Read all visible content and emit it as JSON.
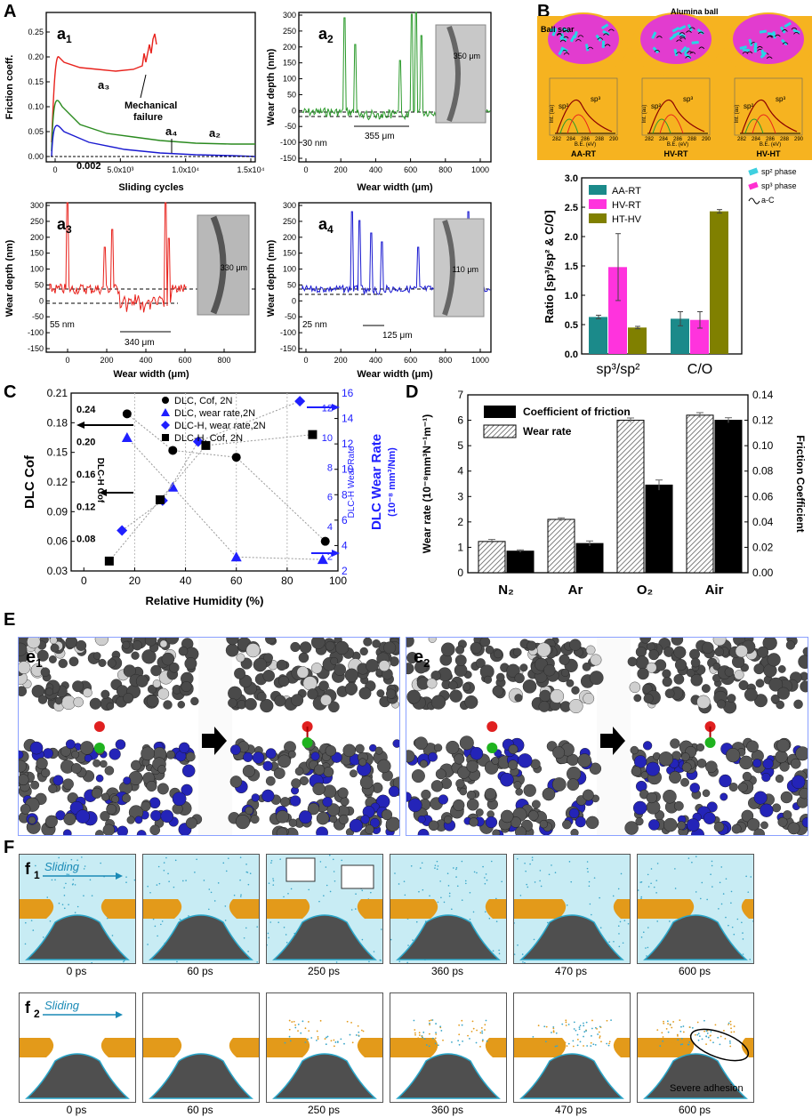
{
  "panels": {
    "A": {
      "letter": "A"
    },
    "B": {
      "letter": "B"
    },
    "C": {
      "letter": "C"
    },
    "D": {
      "letter": "D"
    },
    "E": {
      "letter": "E"
    },
    "F": {
      "letter": "F"
    }
  },
  "a1": {
    "label_main": "a",
    "label_sub": "1",
    "ylabel": "Friction coeff.",
    "xlabel": "Sliding cycles",
    "yticks": [
      "0.00",
      "0.05",
      "0.10",
      "0.15",
      "0.20",
      "0.25"
    ],
    "xticks": [
      "0",
      "5.0x10³",
      "1.0x10⁴",
      "1.5x10⁴"
    ],
    "ann_a3": "a₃",
    "ann_a4": "a₄",
    "ann_a2": "a₂",
    "ann_mech": "Mechanical",
    "ann_fail": "failure",
    "ann_min": "0.002"
  },
  "a2": {
    "label_main": "a",
    "label_sub": "2",
    "ylabel": "Wear depth (nm)",
    "xlabel": "Wear width (μm)",
    "yticks": [
      "-150",
      "-100",
      "-50",
      "0",
      "50",
      "100",
      "150",
      "200",
      "250",
      "300"
    ],
    "xticks": [
      "0",
      "200",
      "400",
      "600",
      "800",
      "1000"
    ],
    "ann_depth": "30 nm",
    "ann_width": "355 μm",
    "ann_img": "350 μm"
  },
  "a3": {
    "label_main": "a",
    "label_sub": "3",
    "ylabel": "Wear depth (nm)",
    "xlabel": "Wear width (μm)",
    "yticks": [
      "-150",
      "-100",
      "-50",
      "0",
      "50",
      "100",
      "150",
      "200",
      "250",
      "300"
    ],
    "xticks": [
      "0",
      "200",
      "400",
      "600",
      "800"
    ],
    "ann_depth": "55 nm",
    "ann_width": "340 μm",
    "ann_img": "330 μm"
  },
  "a4": {
    "label_main": "a",
    "label_sub": "4",
    "ylabel": "Wear depth (nm)",
    "xlabel": "Wear width (μm)",
    "yticks": [
      "-150",
      "-100",
      "-50",
      "0",
      "50",
      "100",
      "150",
      "200",
      "250",
      "300"
    ],
    "xticks": [
      "0",
      "200",
      "400",
      "600",
      "800",
      "1000"
    ],
    "ann_depth": "25 nm",
    "ann_width": "125 μm",
    "ann_img": "110 μm"
  },
  "b": {
    "alumina": "Alumina ball",
    "ballscar": "Ball scar",
    "insets": [
      {
        "caption": "AA-RT",
        "sp2": "sp²",
        "sp3": "sp³"
      },
      {
        "caption": "HV-RT",
        "sp2": "sp²",
        "sp3": "sp³"
      },
      {
        "caption": "HV-HT",
        "sp2": "sp²",
        "sp3": "sp³"
      }
    ],
    "inset_xlabel": "B.E. (eV)",
    "inset_ylabel": "Int. (au)",
    "inset_xticks": [
      "282",
      "284",
      "286",
      "288",
      "290"
    ],
    "legend_sp2": "sp² phase",
    "legend_sp3": "sp³ phase",
    "legend_ac": "a-C"
  },
  "chart_data": [
    {
      "id": "B-bar",
      "type": "bar",
      "ylabel": "Ratio [sp³/sp² & C/O]",
      "categories": [
        "sp³/sp²",
        "C/O"
      ],
      "yticks": [
        "0.0",
        "0.5",
        "1.0",
        "1.5",
        "2.0",
        "2.5",
        "3.0"
      ],
      "ylim": [
        0,
        3.0
      ],
      "series": [
        {
          "name": "AA-RT",
          "color": "#1b8a8a",
          "values": [
            0.63,
            0.6
          ],
          "errors": [
            0.03,
            0.12
          ]
        },
        {
          "name": "HV-RT",
          "color": "#ff33dd",
          "values": [
            1.48,
            0.58
          ],
          "errors": [
            0.57,
            0.14
          ]
        },
        {
          "name": "HT-HV",
          "color": "#808000",
          "values": [
            0.45,
            2.43
          ],
          "errors": [
            0.02,
            0.03
          ]
        }
      ]
    },
    {
      "id": "C-scatter",
      "type": "scatter",
      "xlabel": "Relative Humidity (%)",
      "ylabel_left": "DLC Cof",
      "ylabel_left_inner": "DLC-H Cof",
      "ylabel_right": "DLC Wear Rate",
      "ylabel_right_units": "(10⁻⁸ mm³/Nm)",
      "ylabel_right_inner": "DLC-H Wear Rate",
      "xticks": [
        "0",
        "20",
        "40",
        "60",
        "80",
        "100"
      ],
      "yticks_left": [
        "0.03",
        "0.06",
        "0.09",
        "0.12",
        "0.15",
        "0.18",
        "0.21"
      ],
      "yticks_left_inner": [
        "0.08",
        "0.12",
        "0.16",
        "0.20",
        "0.24"
      ],
      "yticks_right": [
        "2",
        "4",
        "6",
        "8",
        "10",
        "12",
        "14",
        "16"
      ],
      "yticks_right_inner": [
        "2",
        "4",
        "6",
        "8",
        "10",
        "12"
      ],
      "series": [
        {
          "name": "DLC, Cof, 2N",
          "marker": "circle",
          "color": "#000000",
          "x": [
            17,
            35,
            60,
            95
          ],
          "y": [
            0.189,
            0.152,
            0.145,
            0.06
          ]
        },
        {
          "name": "DLC, wear rate,2N",
          "marker": "triangle",
          "color": "#1f1fff",
          "x": [
            17,
            35,
            60,
            94
          ],
          "y": [
            12.5,
            8.6,
            3.1,
            2.9
          ]
        },
        {
          "name": "DLC-H, wear rate,2N",
          "marker": "diamond",
          "color": "#1f1fff",
          "x": [
            15,
            31,
            45,
            85
          ],
          "y": [
            0.09,
            0.127,
            0.2,
            0.25
          ]
        },
        {
          "name": "DLC-H, Cof, 2N",
          "marker": "square",
          "color": "#000000",
          "x": [
            10,
            30,
            48,
            90
          ],
          "y": [
            0.04,
            0.102,
            0.157,
            0.168
          ]
        }
      ]
    },
    {
      "id": "D-bar",
      "type": "bar",
      "ylabel_left": "Wear rate (10⁻⁸mm³N⁻¹m⁻¹)",
      "ylabel_right": "Friction Coefficient",
      "categories": [
        "N₂",
        "Ar",
        "O₂",
        "Air"
      ],
      "yticks_left": [
        "0",
        "1",
        "2",
        "3",
        "4",
        "5",
        "6",
        "7"
      ],
      "yticks_right": [
        "0.00",
        "0.02",
        "0.04",
        "0.06",
        "0.08",
        "0.10",
        "0.12",
        "0.14"
      ],
      "ylim_left": [
        0,
        7
      ],
      "ylim_right": [
        0,
        0.14
      ],
      "series": [
        {
          "name": "Wear rate",
          "axis": "left",
          "pattern": "hatched",
          "values": [
            1.23,
            2.1,
            6.0,
            6.2
          ],
          "errors": [
            0.08,
            0.06,
            0.09,
            0.1
          ]
        },
        {
          "name": "Coefficient of friction",
          "axis": "right",
          "pattern": "solid",
          "values": [
            0.017,
            0.023,
            0.069,
            0.12
          ],
          "errors": [
            0.001,
            0.002,
            0.004,
            0.002
          ]
        }
      ]
    }
  ],
  "e": {
    "e1": {
      "main": "e",
      "sub": "1"
    },
    "e2": {
      "main": "e",
      "sub": "2"
    }
  },
  "f": {
    "f1": {
      "main": "f",
      "sub": "1"
    },
    "f2": {
      "main": "f",
      "sub": "2"
    },
    "sliding": "Sliding",
    "times": [
      "0 ps",
      "60 ps",
      "250 ps",
      "360 ps",
      "470 ps",
      "600 ps"
    ],
    "severe": "Severe adhesion"
  }
}
